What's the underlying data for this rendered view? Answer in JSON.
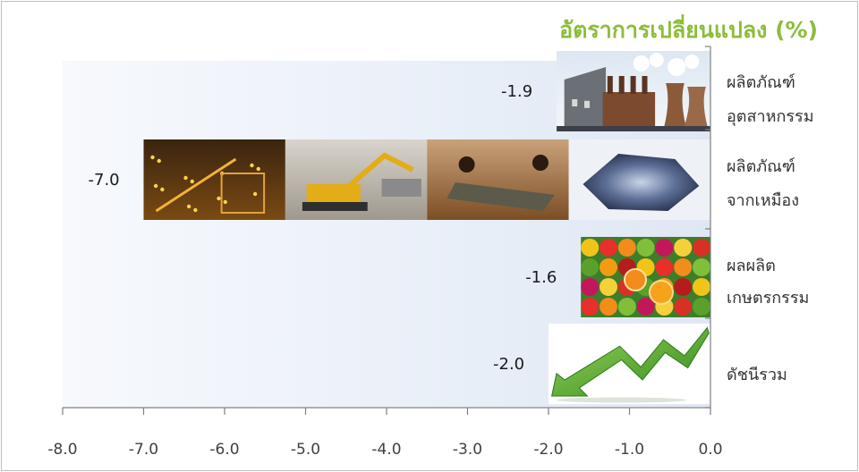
{
  "chart_data": {
    "type": "bar",
    "orientation": "horizontal",
    "title": "อัตราการเปลี่ยนแปลง (%)",
    "categories": [
      [
        "ผลิตภัณฑ์",
        "อุตสาหกรรม"
      ],
      [
        "ผลิตภัณฑ์",
        "จากเหมือง"
      ],
      [
        "ผลผลิต",
        "เกษตรกรรม"
      ],
      [
        "ดัชนีรวม"
      ]
    ],
    "values": [
      -1.9,
      -7.0,
      -1.6,
      -2.0
    ],
    "value_labels": [
      "-1.9",
      "-7.0",
      "-1.6",
      "-2.0"
    ],
    "xlim": [
      -8.0,
      0.0
    ],
    "xticks": [
      "-8.0",
      "-7.0",
      "-6.0",
      "-5.0",
      "-4.0",
      "-3.0",
      "-2.0",
      "-1.0",
      "0.0"
    ],
    "bar_fills": [
      "factory-picture",
      "mining-pictures",
      "fruit-vegetable-picture",
      "green-down-arrow-picture"
    ],
    "colors": {
      "title": "#8cbd3c",
      "axis": "#7f7f7f",
      "arrow": "#4fa52a"
    },
    "grid": false
  }
}
